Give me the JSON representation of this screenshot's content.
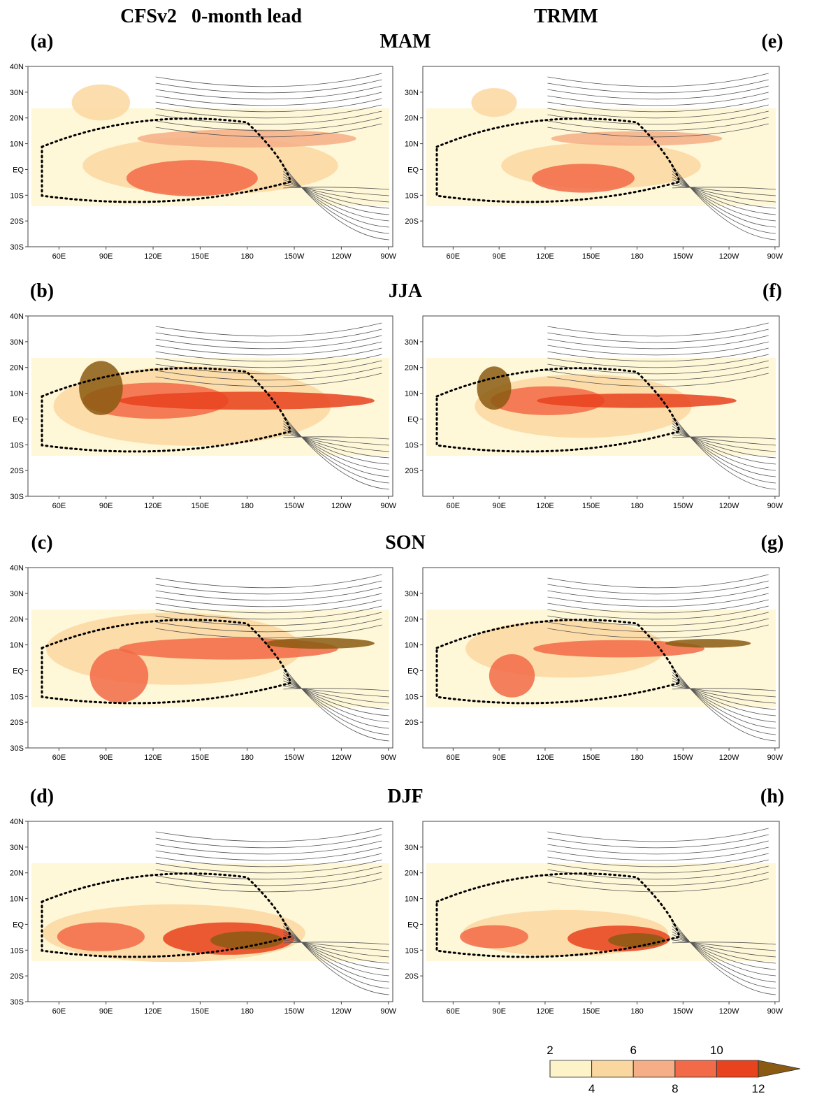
{
  "header": {
    "left_title": "CFSv2   0-month lead",
    "right_title": "TRMM"
  },
  "rows": [
    {
      "season": "MAM",
      "left_label": "(a)",
      "right_label": "(e)"
    },
    {
      "season": "JJA",
      "left_label": "(b)",
      "right_label": "(f)"
    },
    {
      "season": "SON",
      "left_label": "(c)",
      "right_label": "(g)"
    },
    {
      "season": "DJF",
      "left_label": "(d)",
      "right_label": "(h)"
    }
  ],
  "lon_labels": [
    "60E",
    "90E",
    "120E",
    "150E",
    "180",
    "150W",
    "120W",
    "90W"
  ],
  "lat_labels": [
    "40N",
    "30N",
    "20N",
    "10N",
    "EQ",
    "10S",
    "20S",
    "30S"
  ],
  "colorbar": {
    "ticks": [
      2,
      4,
      6,
      8,
      10,
      12
    ],
    "colors": [
      "#fdf3c8",
      "#fbd7a0",
      "#f6ae86",
      "#f26a47",
      "#e8421f",
      "#8a5a12"
    ]
  }
}
